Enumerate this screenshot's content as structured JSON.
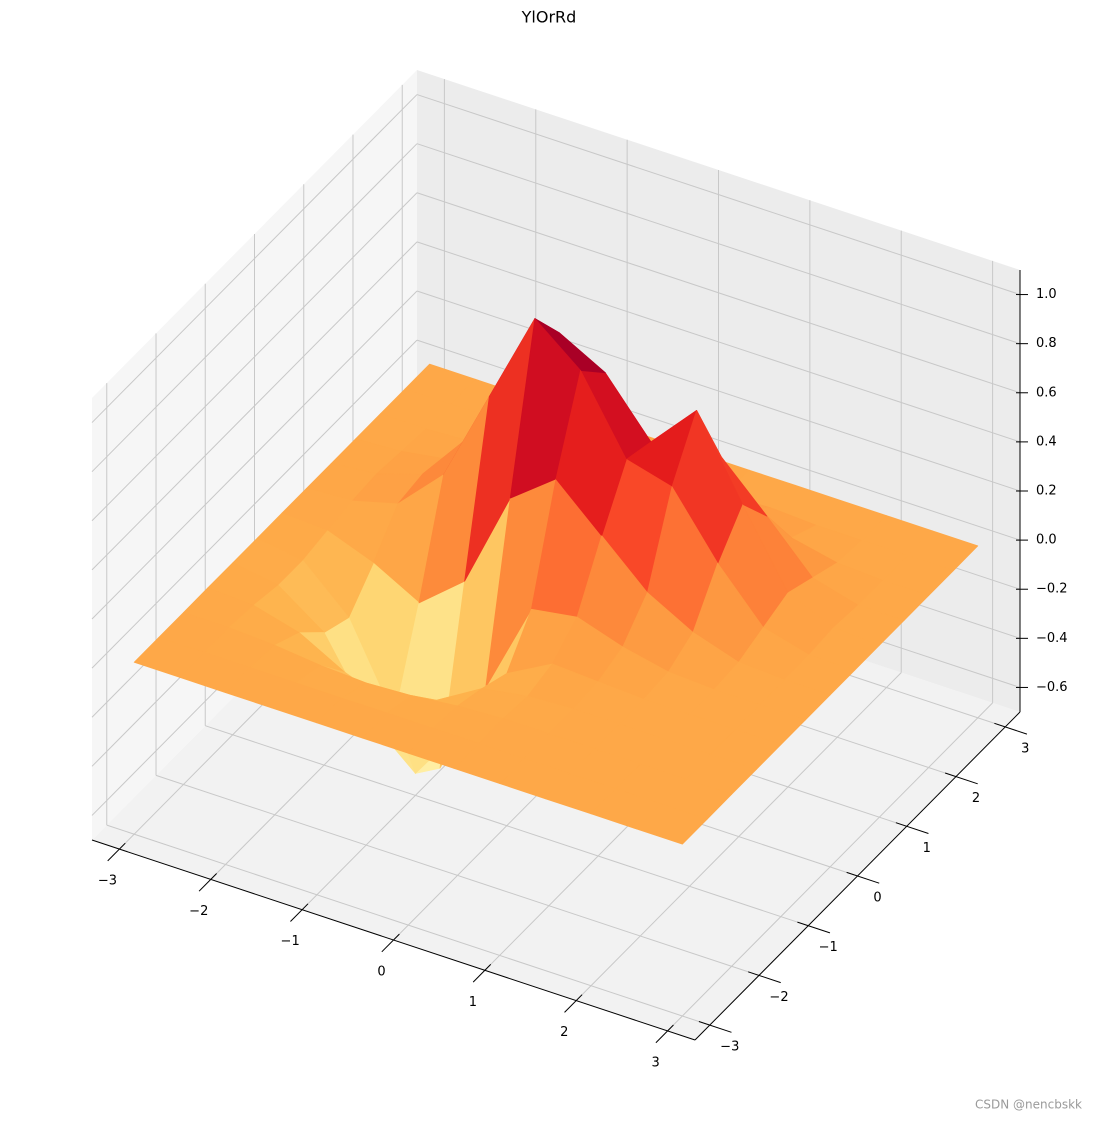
{
  "chart_data": {
    "type": "surface",
    "title": "YlOrRd",
    "colors": [
      "#ffffcc",
      "#ffeda0",
      "#fed976",
      "#feb24c",
      "#fd8d3c",
      "#fc4e2a",
      "#e31a1c",
      "#bd0026",
      "#800026"
    ],
    "x": [
      -3,
      -2.5,
      -2,
      -1.5,
      -1,
      -0.5,
      0,
      0.5,
      1,
      1.5,
      2,
      2.5,
      3
    ],
    "y": [
      -3,
      -2.5,
      -2,
      -1.5,
      -1,
      -0.5,
      0,
      0.5,
      1,
      1.5,
      2,
      2.5,
      3
    ],
    "z": [
      [
        0,
        0,
        0,
        0,
        0,
        0,
        0,
        0,
        0,
        0,
        0,
        0,
        0
      ],
      [
        0,
        0,
        0,
        0,
        0,
        0,
        0,
        0,
        0,
        0,
        0,
        0,
        0
      ],
      [
        0,
        0,
        -0.01,
        -0.03,
        -0.04,
        -0.03,
        -0.01,
        0,
        0,
        0,
        0,
        0,
        0
      ],
      [
        0,
        -0.01,
        -0.06,
        -0.16,
        -0.23,
        -0.15,
        -0.04,
        -0.01,
        0,
        0,
        0,
        0,
        0
      ],
      [
        0,
        -0.03,
        -0.16,
        -0.45,
        -0.61,
        -0.37,
        -0.08,
        0.02,
        0.01,
        0,
        0,
        0,
        0
      ],
      [
        0,
        -0.03,
        -0.2,
        -0.55,
        -0.69,
        -0.3,
        0.08,
        0.11,
        0.05,
        0.01,
        0,
        0,
        0
      ],
      [
        0,
        -0.01,
        -0.08,
        -0.18,
        -0.03,
        0.37,
        0.51,
        0.34,
        0.17,
        0.07,
        0.01,
        0,
        0
      ],
      [
        0,
        0.01,
        0.06,
        0.24,
        0.62,
        1.0,
        0.85,
        0.55,
        0.5,
        0.25,
        0.05,
        0,
        0
      ],
      [
        0,
        0.02,
        0.08,
        0.29,
        0.63,
        0.84,
        0.74,
        0.52,
        0.71,
        0.39,
        0.09,
        0.01,
        0
      ],
      [
        0,
        0.01,
        0.04,
        0.15,
        0.32,
        0.41,
        0.37,
        0.38,
        0.42,
        0.24,
        0.05,
        0,
        0
      ],
      [
        0,
        0,
        0.01,
        0.04,
        0.09,
        0.12,
        0.1,
        0.09,
        0.1,
        0.05,
        0.01,
        0,
        0
      ],
      [
        0,
        0,
        0,
        0.01,
        0.02,
        0.02,
        0.02,
        0,
        0.01,
        0,
        0,
        0,
        0
      ],
      [
        0,
        0,
        0,
        0,
        0,
        0,
        0,
        0,
        0,
        0,
        0,
        0,
        0
      ]
    ],
    "xlim": [
      -3.3,
      3.3
    ],
    "ylim": [
      -3.3,
      3.3
    ],
    "zlim": [
      -0.7,
      1.1
    ],
    "xticks": [
      {
        "value": -3,
        "label": "−3"
      },
      {
        "value": -2,
        "label": "−2"
      },
      {
        "value": -1,
        "label": "−1"
      },
      0,
      1,
      2,
      3
    ],
    "yticks": [
      {
        "value": -3,
        "label": "−3"
      },
      {
        "value": -2,
        "label": "−2"
      },
      {
        "value": -1,
        "label": "−1"
      },
      0,
      1,
      2,
      3
    ],
    "zticks": [
      {
        "value": -0.6,
        "label": "−0.6"
      },
      {
        "value": -0.4,
        "label": "−0.4"
      },
      {
        "value": -0.2,
        "label": "−0.2"
      },
      {
        "value": 0,
        "label": "0.0"
      },
      0.2,
      0.4,
      0.6,
      0.8,
      {
        "value": 1,
        "label": "1.0"
      }
    ],
    "grid": true
  },
  "watermark": "CSDN @nencbskk"
}
